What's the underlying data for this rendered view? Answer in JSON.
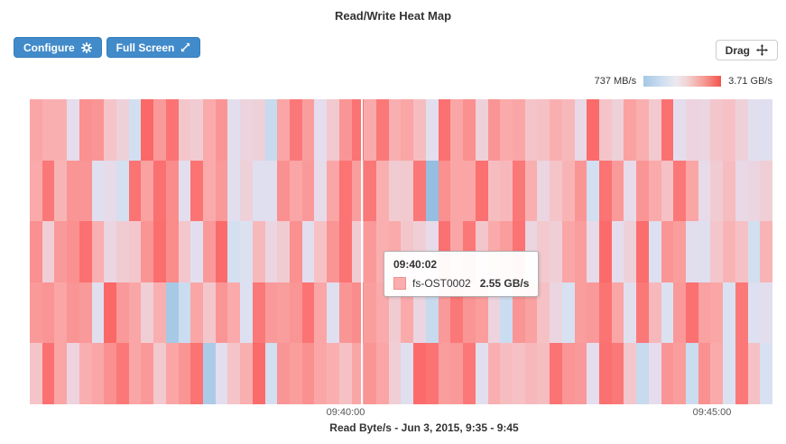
{
  "title": "Read/Write Heat Map",
  "toolbar": {
    "configure_label": "Configure",
    "fullscreen_label": "Full Screen",
    "drag_label": "Drag"
  },
  "icons": {
    "configure": "gear-icon",
    "fullscreen": "expand-diagonal-icon",
    "drag": "move-arrows-icon"
  },
  "colors": {
    "button_blue": "#428bca",
    "button_blue_border": "#357ebd",
    "legend_min_color": "#a5c8e6",
    "legend_max_color": "#f4544c",
    "tooltip_swatch": "#fbadad"
  },
  "tooltip": {
    "time": "09:40:02",
    "series": "fs-OST0002",
    "value": "2.55 GB/s"
  },
  "chart_data": {
    "type": "heatmap",
    "title": "Read/Write Heat Map",
    "caption": "Read Byte/s - Jun 3, 2015, 9:35 - 9:45",
    "x_tick_labels": [
      "09:40:00",
      "09:45:00"
    ],
    "legend": {
      "min_label": "737 MB/s",
      "max_label": "3.71 GB/s",
      "min_value_gbps": 0.737,
      "max_value_gbps": 3.71,
      "position": "top-right"
    },
    "rows": 5,
    "cols": 60,
    "unit": "GB/s",
    "grid": false,
    "values": [
      [
        2.8,
        2.7,
        2.7,
        1.95,
        3.05,
        3.0,
        2.45,
        2.2,
        1.5,
        3.55,
        2.95,
        3.35,
        2.4,
        2.3,
        2.75,
        3.0,
        1.9,
        2.15,
        2.2,
        1.35,
        2.8,
        3.3,
        2.9,
        1.95,
        2.35,
        3.0,
        3.35,
        2.75,
        3.3,
        2.7,
        2.8,
        2.55,
        1.9,
        3.4,
        2.8,
        3.05,
        2.2,
        3.0,
        2.75,
        2.8,
        2.45,
        2.5,
        2.7,
        2.6,
        2.05,
        3.5,
        2.45,
        2.2,
        2.85,
        2.7,
        2.35,
        3.4,
        1.95,
        2.15,
        2.1,
        2.4,
        2.5,
        2.2,
        1.85,
        1.8
      ],
      [
        2.75,
        3.3,
        2.65,
        3.0,
        3.0,
        1.8,
        2.0,
        1.55,
        3.35,
        2.85,
        3.4,
        3.1,
        1.9,
        3.35,
        2.75,
        2.95,
        1.85,
        2.2,
        1.8,
        1.8,
        3.05,
        2.8,
        2.95,
        2.0,
        2.8,
        3.35,
        2.9,
        3.3,
        2.7,
        2.3,
        2.35,
        3.3,
        0.8,
        3.05,
        2.8,
        2.8,
        3.4,
        2.55,
        2.6,
        3.3,
        2.7,
        2.1,
        2.45,
        2.65,
        3.0,
        1.5,
        3.35,
        2.95,
        2.0,
        3.0,
        2.75,
        2.5,
        3.3,
        2.8,
        2.0,
        2.3,
        2.55,
        2.05,
        2.1,
        2.25
      ],
      [
        3.05,
        2.25,
        2.95,
        3.05,
        3.4,
        2.7,
        2.1,
        2.3,
        2.4,
        3.0,
        3.45,
        3.1,
        2.4,
        1.9,
        2.95,
        3.5,
        1.55,
        1.7,
        2.6,
        2.1,
        2.3,
        3.05,
        1.9,
        2.5,
        3.0,
        3.35,
        2.3,
        2.95,
        2.7,
        2.75,
        2.4,
        2.25,
        2.0,
        3.4,
        2.8,
        3.3,
        2.4,
        2.75,
        2.9,
        3.35,
        2.1,
        2.35,
        2.25,
        2.8,
        2.9,
        2.0,
        3.5,
        1.95,
        2.2,
        3.45,
        1.75,
        3.0,
        2.9,
        1.9,
        1.8,
        2.4,
        2.65,
        2.5,
        1.5,
        2.65
      ],
      [
        2.95,
        3.0,
        2.8,
        3.0,
        2.95,
        1.85,
        3.55,
        2.95,
        2.8,
        2.25,
        2.7,
        1.0,
        1.4,
        2.8,
        2.4,
        3.0,
        2.75,
        1.75,
        3.3,
        2.95,
        2.9,
        3.0,
        3.35,
        2.8,
        1.8,
        3.0,
        3.1,
        2.9,
        2.75,
        2.3,
        2.75,
        2.1,
        1.35,
        2.95,
        3.3,
        3.0,
        2.9,
        2.15,
        1.4,
        3.0,
        2.85,
        2.5,
        2.1,
        1.6,
        2.9,
        2.95,
        3.35,
        2.8,
        1.85,
        3.3,
        2.6,
        1.7,
        2.95,
        3.4,
        2.85,
        2.8,
        1.65,
        3.3,
        1.75,
        1.9
      ],
      [
        2.45,
        3.4,
        2.8,
        2.15,
        2.7,
        2.8,
        3.05,
        3.3,
        2.8,
        2.95,
        2.35,
        2.8,
        3.0,
        3.35,
        1.05,
        1.9,
        2.45,
        2.7,
        3.5,
        1.5,
        3.0,
        2.9,
        3.05,
        2.8,
        2.7,
        2.5,
        2.8,
        3.0,
        2.8,
        2.25,
        1.8,
        3.5,
        3.35,
        2.9,
        2.95,
        3.3,
        1.85,
        2.7,
        2.55,
        2.5,
        2.6,
        2.55,
        3.35,
        3.0,
        2.95,
        1.95,
        3.4,
        3.3,
        2.4,
        1.35,
        1.95,
        3.0,
        2.9,
        1.4,
        3.05,
        2.75,
        1.65,
        3.3,
        2.5,
        1.6
      ]
    ]
  }
}
